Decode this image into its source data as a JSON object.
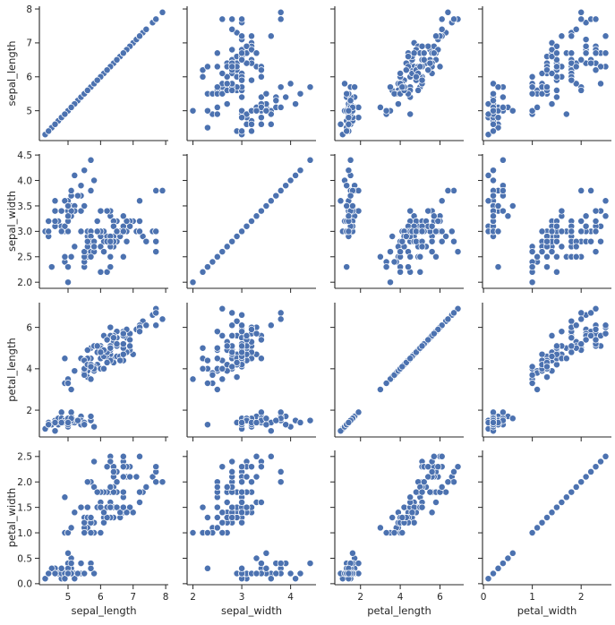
{
  "chart_data": {
    "type": "scatter",
    "kind": "pairplot",
    "grid": false,
    "marker_color": "#4c72b0",
    "marker_edge": "#ffffff",
    "variables": [
      {
        "name": "sepal_length",
        "ticks": [
          5,
          6,
          7,
          8
        ],
        "tick_labels": [
          "5",
          "6",
          "7",
          "8"
        ]
      },
      {
        "name": "sepal_width",
        "ticks": [
          2.0,
          2.5,
          3.0,
          3.5,
          4.0,
          4.5
        ],
        "tick_labels": [
          "2.0",
          "2.5",
          "3.0",
          "3.5",
          "4.0",
          "4.5"
        ],
        "x_ticks": [
          2,
          3,
          4
        ],
        "x_tick_labels": [
          "2",
          "3",
          "4"
        ]
      },
      {
        "name": "petal_length",
        "ticks": [
          2,
          4,
          6
        ],
        "tick_labels": [
          "2",
          "4",
          "6"
        ]
      },
      {
        "name": "petal_width",
        "ticks": [
          0.0,
          0.5,
          1.0,
          1.5,
          2.0,
          2.5
        ],
        "tick_labels": [
          "0.0",
          "0.5",
          "1.0",
          "1.5",
          "2.0",
          "2.5"
        ],
        "x_ticks": [
          0,
          1,
          2
        ],
        "x_tick_labels": [
          "0",
          "1",
          "2"
        ]
      }
    ],
    "rows": [
      [
        5.1,
        3.5,
        1.4,
        0.2
      ],
      [
        4.9,
        3.0,
        1.4,
        0.2
      ],
      [
        4.7,
        3.2,
        1.3,
        0.2
      ],
      [
        4.6,
        3.1,
        1.5,
        0.2
      ],
      [
        5.0,
        3.6,
        1.4,
        0.2
      ],
      [
        5.4,
        3.9,
        1.7,
        0.4
      ],
      [
        4.6,
        3.4,
        1.4,
        0.3
      ],
      [
        5.0,
        3.4,
        1.5,
        0.2
      ],
      [
        4.4,
        2.9,
        1.4,
        0.2
      ],
      [
        4.9,
        3.1,
        1.5,
        0.1
      ],
      [
        5.4,
        3.7,
        1.5,
        0.2
      ],
      [
        4.8,
        3.4,
        1.6,
        0.2
      ],
      [
        4.8,
        3.0,
        1.4,
        0.1
      ],
      [
        4.3,
        3.0,
        1.1,
        0.1
      ],
      [
        5.8,
        4.0,
        1.2,
        0.2
      ],
      [
        5.7,
        4.4,
        1.5,
        0.4
      ],
      [
        5.4,
        3.9,
        1.3,
        0.4
      ],
      [
        5.1,
        3.5,
        1.4,
        0.3
      ],
      [
        5.7,
        3.8,
        1.7,
        0.3
      ],
      [
        5.1,
        3.8,
        1.5,
        0.3
      ],
      [
        5.4,
        3.4,
        1.7,
        0.2
      ],
      [
        5.1,
        3.7,
        1.5,
        0.4
      ],
      [
        4.6,
        3.6,
        1.0,
        0.2
      ],
      [
        5.1,
        3.3,
        1.7,
        0.5
      ],
      [
        4.8,
        3.4,
        1.9,
        0.2
      ],
      [
        5.0,
        3.0,
        1.6,
        0.2
      ],
      [
        5.0,
        3.4,
        1.6,
        0.4
      ],
      [
        5.2,
        3.5,
        1.5,
        0.2
      ],
      [
        5.2,
        3.4,
        1.4,
        0.2
      ],
      [
        4.7,
        3.2,
        1.6,
        0.2
      ],
      [
        4.8,
        3.1,
        1.6,
        0.2
      ],
      [
        5.4,
        3.4,
        1.5,
        0.4
      ],
      [
        5.2,
        4.1,
        1.5,
        0.1
      ],
      [
        5.5,
        4.2,
        1.4,
        0.2
      ],
      [
        4.9,
        3.1,
        1.5,
        0.2
      ],
      [
        5.0,
        3.2,
        1.2,
        0.2
      ],
      [
        5.5,
        3.5,
        1.3,
        0.2
      ],
      [
        4.9,
        3.6,
        1.4,
        0.1
      ],
      [
        4.4,
        3.0,
        1.3,
        0.2
      ],
      [
        5.1,
        3.4,
        1.5,
        0.2
      ],
      [
        5.0,
        3.5,
        1.3,
        0.3
      ],
      [
        4.5,
        2.3,
        1.3,
        0.3
      ],
      [
        4.4,
        3.2,
        1.3,
        0.2
      ],
      [
        5.0,
        3.5,
        1.6,
        0.6
      ],
      [
        5.1,
        3.8,
        1.9,
        0.4
      ],
      [
        4.8,
        3.0,
        1.4,
        0.3
      ],
      [
        5.1,
        3.8,
        1.6,
        0.2
      ],
      [
        4.6,
        3.2,
        1.4,
        0.2
      ],
      [
        5.3,
        3.7,
        1.5,
        0.2
      ],
      [
        5.0,
        3.3,
        1.4,
        0.2
      ],
      [
        7.0,
        3.2,
        4.7,
        1.4
      ],
      [
        6.4,
        3.2,
        4.5,
        1.5
      ],
      [
        6.9,
        3.1,
        4.9,
        1.5
      ],
      [
        5.5,
        2.3,
        4.0,
        1.3
      ],
      [
        6.5,
        2.8,
        4.6,
        1.5
      ],
      [
        5.7,
        2.8,
        4.5,
        1.3
      ],
      [
        6.3,
        3.3,
        4.7,
        1.6
      ],
      [
        4.9,
        2.4,
        3.3,
        1.0
      ],
      [
        6.6,
        2.9,
        4.6,
        1.3
      ],
      [
        5.2,
        2.7,
        3.9,
        1.4
      ],
      [
        5.0,
        2.0,
        3.5,
        1.0
      ],
      [
        5.9,
        3.0,
        4.2,
        1.5
      ],
      [
        6.0,
        2.2,
        4.0,
        1.0
      ],
      [
        6.1,
        2.9,
        4.7,
        1.4
      ],
      [
        5.6,
        2.9,
        3.6,
        1.3
      ],
      [
        6.7,
        3.1,
        4.4,
        1.4
      ],
      [
        5.6,
        3.0,
        4.5,
        1.5
      ],
      [
        5.8,
        2.7,
        4.1,
        1.0
      ],
      [
        6.2,
        2.2,
        4.5,
        1.5
      ],
      [
        5.6,
        2.5,
        3.9,
        1.1
      ],
      [
        5.9,
        3.2,
        4.8,
        1.8
      ],
      [
        6.1,
        2.8,
        4.0,
        1.3
      ],
      [
        6.3,
        2.5,
        4.9,
        1.5
      ],
      [
        6.1,
        2.8,
        4.7,
        1.2
      ],
      [
        6.4,
        2.9,
        4.3,
        1.3
      ],
      [
        6.6,
        3.0,
        4.4,
        1.4
      ],
      [
        6.8,
        2.8,
        4.8,
        1.4
      ],
      [
        6.7,
        3.0,
        5.0,
        1.7
      ],
      [
        6.0,
        2.9,
        4.5,
        1.5
      ],
      [
        5.7,
        2.6,
        3.5,
        1.0
      ],
      [
        5.5,
        2.4,
        3.8,
        1.1
      ],
      [
        5.5,
        2.4,
        3.7,
        1.0
      ],
      [
        5.8,
        2.7,
        3.9,
        1.2
      ],
      [
        6.0,
        2.7,
        5.1,
        1.6
      ],
      [
        5.4,
        3.0,
        4.5,
        1.5
      ],
      [
        6.0,
        3.4,
        4.5,
        1.6
      ],
      [
        6.7,
        3.1,
        4.7,
        1.5
      ],
      [
        6.3,
        2.3,
        4.4,
        1.3
      ],
      [
        5.6,
        3.0,
        4.1,
        1.3
      ],
      [
        5.5,
        2.5,
        4.0,
        1.3
      ],
      [
        5.5,
        2.6,
        4.4,
        1.2
      ],
      [
        6.1,
        3.0,
        4.6,
        1.4
      ],
      [
        5.8,
        2.6,
        4.0,
        1.2
      ],
      [
        5.0,
        2.3,
        3.3,
        1.0
      ],
      [
        5.6,
        2.7,
        4.2,
        1.3
      ],
      [
        5.7,
        3.0,
        4.2,
        1.2
      ],
      [
        5.7,
        2.9,
        4.2,
        1.3
      ],
      [
        6.2,
        2.9,
        4.3,
        1.3
      ],
      [
        5.1,
        2.5,
        3.0,
        1.1
      ],
      [
        5.7,
        2.8,
        4.1,
        1.3
      ],
      [
        6.3,
        3.3,
        6.0,
        2.5
      ],
      [
        5.8,
        2.7,
        5.1,
        1.9
      ],
      [
        7.1,
        3.0,
        5.9,
        2.1
      ],
      [
        6.3,
        2.9,
        5.6,
        1.8
      ],
      [
        6.5,
        3.0,
        5.8,
        2.2
      ],
      [
        7.6,
        3.0,
        6.6,
        2.1
      ],
      [
        4.9,
        2.5,
        4.5,
        1.7
      ],
      [
        7.3,
        2.9,
        6.3,
        1.8
      ],
      [
        6.7,
        2.5,
        5.8,
        1.8
      ],
      [
        7.2,
        3.6,
        6.1,
        2.5
      ],
      [
        6.5,
        3.2,
        5.1,
        2.0
      ],
      [
        6.4,
        2.7,
        5.3,
        1.9
      ],
      [
        6.8,
        3.0,
        5.5,
        2.1
      ],
      [
        5.7,
        2.5,
        5.0,
        2.0
      ],
      [
        5.8,
        2.8,
        5.1,
        2.4
      ],
      [
        6.4,
        3.2,
        5.3,
        2.3
      ],
      [
        6.5,
        3.0,
        5.5,
        1.8
      ],
      [
        7.7,
        3.8,
        6.7,
        2.2
      ],
      [
        7.7,
        2.6,
        6.9,
        2.3
      ],
      [
        6.0,
        2.2,
        5.0,
        1.5
      ],
      [
        6.9,
        3.2,
        5.7,
        2.3
      ],
      [
        5.6,
        2.8,
        4.9,
        2.0
      ],
      [
        7.7,
        2.8,
        6.7,
        2.0
      ],
      [
        6.3,
        2.7,
        4.9,
        1.8
      ],
      [
        6.7,
        3.3,
        5.7,
        2.1
      ],
      [
        7.2,
        3.2,
        6.0,
        1.8
      ],
      [
        6.2,
        2.8,
        4.8,
        1.8
      ],
      [
        6.1,
        3.0,
        4.9,
        1.8
      ],
      [
        6.4,
        2.8,
        5.6,
        2.1
      ],
      [
        7.2,
        3.0,
        5.8,
        1.6
      ],
      [
        7.4,
        2.8,
        6.1,
        1.9
      ],
      [
        7.9,
        3.8,
        6.4,
        2.0
      ],
      [
        6.4,
        2.8,
        5.6,
        2.2
      ],
      [
        6.3,
        2.8,
        5.1,
        1.5
      ],
      [
        6.1,
        2.6,
        5.6,
        1.4
      ],
      [
        7.7,
        3.0,
        6.1,
        2.3
      ],
      [
        6.3,
        3.4,
        5.6,
        2.4
      ],
      [
        6.4,
        3.1,
        5.5,
        1.8
      ],
      [
        6.0,
        3.0,
        4.8,
        1.8
      ],
      [
        6.9,
        3.1,
        5.4,
        2.1
      ],
      [
        6.7,
        3.1,
        5.6,
        2.4
      ],
      [
        6.9,
        3.1,
        5.1,
        2.3
      ],
      [
        5.8,
        2.7,
        5.1,
        1.9
      ],
      [
        6.8,
        3.2,
        5.9,
        2.3
      ],
      [
        6.7,
        3.3,
        5.7,
        2.5
      ],
      [
        6.7,
        3.0,
        5.2,
        2.3
      ],
      [
        6.3,
        2.5,
        5.0,
        1.9
      ],
      [
        6.5,
        3.0,
        5.2,
        2.0
      ],
      [
        6.2,
        3.4,
        5.4,
        2.3
      ],
      [
        5.9,
        3.0,
        5.1,
        1.8
      ]
    ]
  }
}
